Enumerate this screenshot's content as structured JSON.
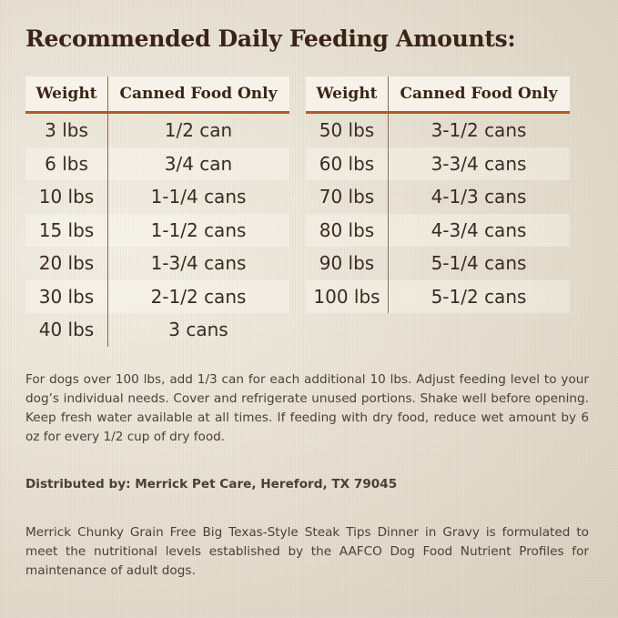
{
  "title": "Recommended Daily Feeding Amounts:",
  "tables": [
    {
      "headers": [
        "Weight",
        "Canned Food Only"
      ],
      "rows": [
        [
          "3 lbs",
          "1/2 can"
        ],
        [
          "6 lbs",
          "3/4 can"
        ],
        [
          "10 lbs",
          "1-1/4 cans"
        ],
        [
          "15 lbs",
          "1-1/2 cans"
        ],
        [
          "20 lbs",
          "1-3/4 cans"
        ],
        [
          "30 lbs",
          "2-1/2 cans"
        ],
        [
          "40 lbs",
          "3 cans"
        ]
      ]
    },
    {
      "headers": [
        "Weight",
        "Canned Food Only"
      ],
      "rows": [
        [
          "50 lbs",
          "3-1/2 cans"
        ],
        [
          "60 lbs",
          "3-3/4 cans"
        ],
        [
          "70 lbs",
          "4-1/3 cans"
        ],
        [
          "80 lbs",
          "4-3/4 cans"
        ],
        [
          "90 lbs",
          "5-1/4 cans"
        ],
        [
          "100 lbs",
          "5-1/2 cans"
        ]
      ]
    }
  ],
  "instructions": "For dogs over 100 lbs, add 1/3 can for each additional 10 lbs. Adjust feeding level to your dog’s individual needs. Cover and refrigerate unused portions. Shake well before opening. Keep fresh water available at all times. If feeding with dry food, reduce wet amount by 6 oz for every 1/2 cup of dry food.",
  "distributor": "Distributed by: Merrick Pet Care, Hereford, TX 79045",
  "statement": "Merrick Chunky Grain Free Big Texas-Style Steak Tips Dinner in Gravy is formulated to meet the nutritional levels established by the AAFCO Dog Food Nutrient Profiles for maintenance of adult dogs."
}
